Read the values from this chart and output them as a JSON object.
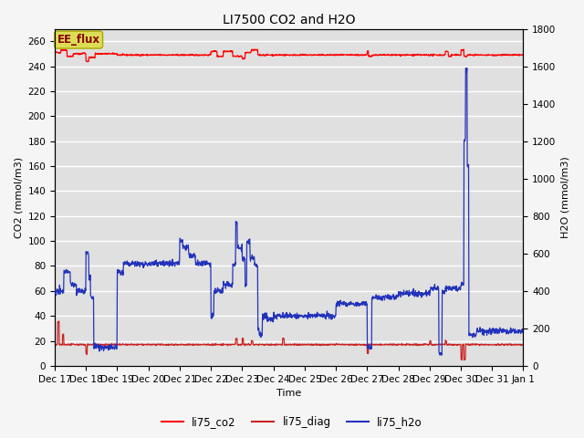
{
  "title": "LI7500 CO2 and H2O",
  "xlabel": "Time",
  "ylabel_left": "CO2 (mmol/m3)",
  "ylabel_right": "H2O (mmol/m3)",
  "ylim_left": [
    0,
    270
  ],
  "ylim_right": [
    0,
    1800
  ],
  "yticks_left": [
    0,
    20,
    40,
    60,
    80,
    100,
    120,
    140,
    160,
    180,
    200,
    220,
    240,
    260
  ],
  "yticks_right": [
    0,
    200,
    400,
    600,
    800,
    1000,
    1200,
    1400,
    1600,
    1800
  ],
  "annotation_text": "EE_flux",
  "bg_color": "#e0e0e0",
  "grid_color": "#ffffff",
  "line_co2_color": "#ff0000",
  "line_diag_color": "#cc2222",
  "line_h2o_color": "#2233bb",
  "legend_entries": [
    "li75_co2",
    "li75_diag",
    "li75_h2o"
  ],
  "x_tick_labels": [
    "Dec 17",
    "Dec 18",
    "Dec 19",
    "Dec 20",
    "Dec 21",
    "Dec 22",
    "Dec 23",
    "Dec 24",
    "Dec 25",
    "Dec 26",
    "Dec 27",
    "Dec 28",
    "Dec 29",
    "Dec 30",
    "Dec 31",
    "Jan 1"
  ],
  "num_days": 16,
  "scale_h2o": 6.667
}
